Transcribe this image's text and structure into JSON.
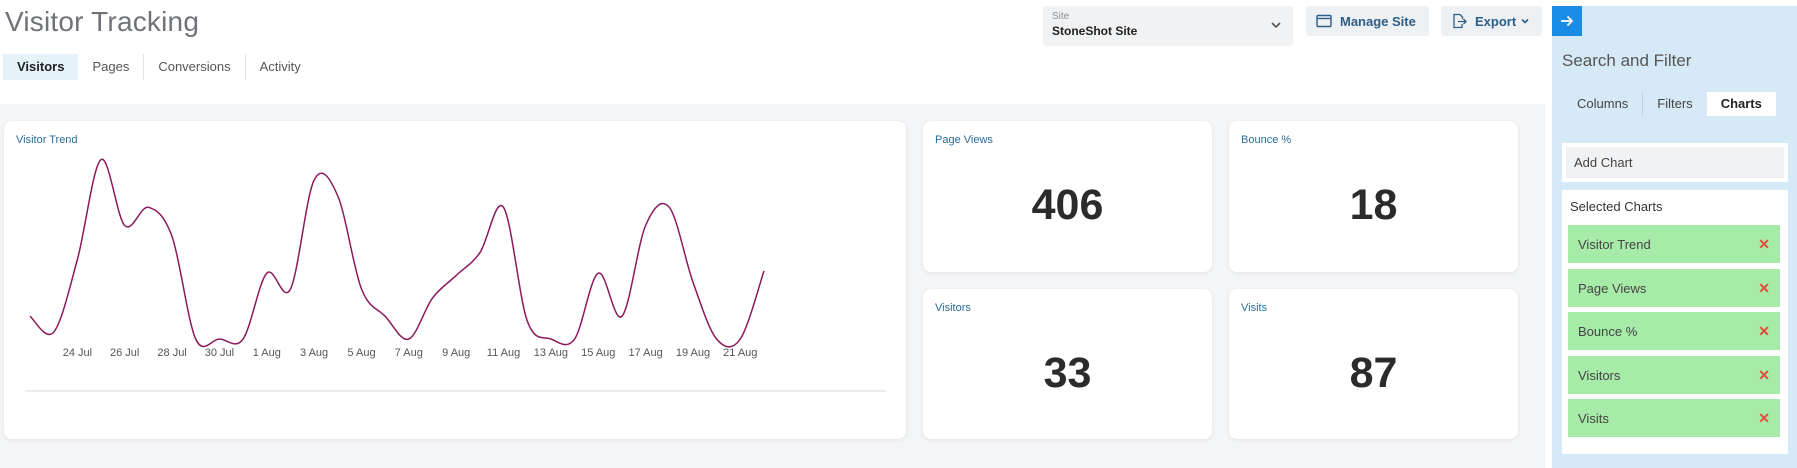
{
  "header": {
    "title": "Visitor Tracking",
    "site_select": {
      "label": "Site",
      "value": "StoneShot Site"
    },
    "manage_site_label": "Manage Site",
    "export_label": "Export"
  },
  "tabs": [
    {
      "label": "Visitors",
      "active": true
    },
    {
      "label": "Pages",
      "active": false
    },
    {
      "label": "Conversions",
      "active": false
    },
    {
      "label": "Activity",
      "active": false
    }
  ],
  "cards": {
    "trend_title": "Visitor Trend",
    "page_views": {
      "title": "Page Views",
      "value": "406"
    },
    "bounce": {
      "title": "Bounce %",
      "value": "18"
    },
    "visitors": {
      "title": "Visitors",
      "value": "33"
    },
    "visits": {
      "title": "Visits",
      "value": "87"
    }
  },
  "chart_data": {
    "type": "line",
    "title": "Visitor Trend",
    "color": "#8b1a5c",
    "x": [
      "22 Jul",
      "23 Jul",
      "24 Jul",
      "25 Jul",
      "26 Jul",
      "27 Jul",
      "28 Jul",
      "29 Jul",
      "30 Jul",
      "31 Jul",
      "1 Aug",
      "2 Aug",
      "3 Aug",
      "4 Aug",
      "5 Aug",
      "6 Aug",
      "7 Aug",
      "8 Aug",
      "9 Aug",
      "10 Aug",
      "11 Aug",
      "12 Aug",
      "13 Aug",
      "14 Aug",
      "15 Aug",
      "16 Aug",
      "17 Aug",
      "18 Aug",
      "19 Aug",
      "20 Aug",
      "21 Aug",
      "22 Aug"
    ],
    "values": [
      1.0,
      0.3,
      3.5,
      7.9,
      5.0,
      5.8,
      4.5,
      0,
      0,
      0,
      2.9,
      2.2,
      7.0,
      6.3,
      2.2,
      1.0,
      0,
      1.8,
      2.8,
      3.8,
      5.8,
      0.8,
      0,
      0,
      2.9,
      1.0,
      5.0,
      5.8,
      2.5,
      0,
      0,
      3.0
    ],
    "xticks": [
      "24 Jul",
      "26 Jul",
      "28 Jul",
      "30 Jul",
      "1 Aug",
      "3 Aug",
      "5 Aug",
      "7 Aug",
      "9 Aug",
      "11 Aug",
      "13 Aug",
      "15 Aug",
      "17 Aug",
      "19 Aug",
      "21 Aug"
    ],
    "ylim": [
      0,
      8.5
    ],
    "grid": false,
    "legend": "none"
  },
  "side_panel": {
    "title": "Search and Filter",
    "tabs": [
      {
        "label": "Columns",
        "active": false
      },
      {
        "label": "Filters",
        "active": false
      },
      {
        "label": "Charts",
        "active": true
      }
    ],
    "add_chart_placeholder": "Add Chart",
    "selected_title": "Selected Charts",
    "selected_charts": [
      "Visitor Trend",
      "Page Views",
      "Bounce %",
      "Visitors",
      "Visits"
    ],
    "remove_glyph": "✕"
  },
  "colors": {
    "accent": "#1a8ce6",
    "link": "#2a6b9b",
    "selected_chip": "#a6eba8",
    "remove": "#e64a3b",
    "panel_bg": "#d6e9f6"
  }
}
